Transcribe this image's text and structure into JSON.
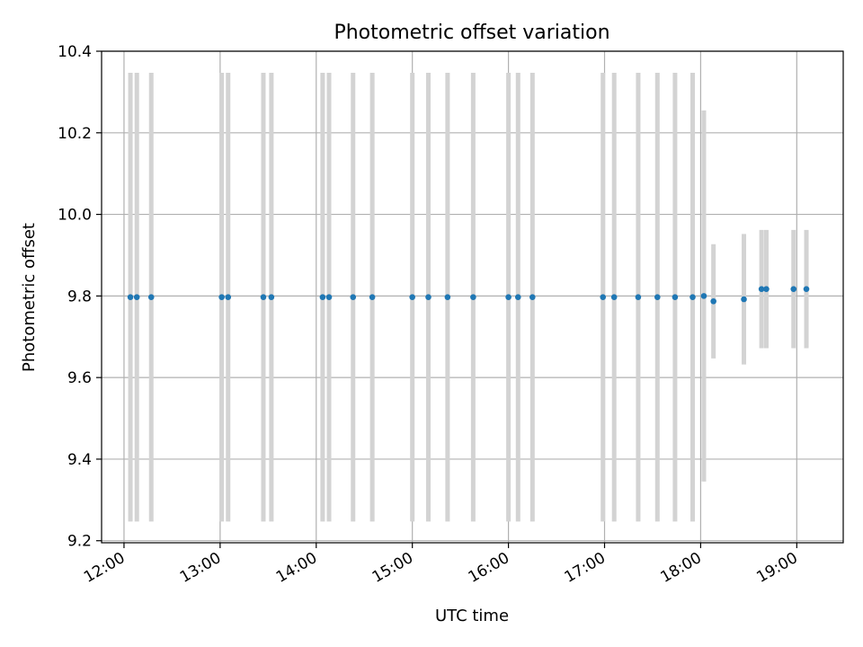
{
  "chart_data": {
    "type": "scatter",
    "title": "Photometric offset variation",
    "xlabel": "UTC time",
    "ylabel": "Photometric offset",
    "x_axis": "time",
    "xlim": [
      "11:46",
      "19:29"
    ],
    "ylim": [
      9.195,
      10.4
    ],
    "xticks": [
      "12:00",
      "13:00",
      "14:00",
      "15:00",
      "16:00",
      "17:00",
      "18:00",
      "19:00"
    ],
    "yticks": [
      9.2,
      9.4,
      9.6,
      9.8,
      10.0,
      10.2,
      10.4
    ],
    "ytick_labels": [
      "9.2",
      "9.4",
      "9.6",
      "9.8",
      "10.0",
      "10.2",
      "10.4"
    ],
    "grid": true,
    "colors": {
      "points": "#1f77b4",
      "error_bars": "#d3d3d3"
    },
    "points": [
      {
        "t": "12:04",
        "y": 9.797,
        "err": 0.55
      },
      {
        "t": "12:08",
        "y": 9.797,
        "err": 0.55
      },
      {
        "t": "12:17",
        "y": 9.797,
        "err": 0.55
      },
      {
        "t": "13:01",
        "y": 9.797,
        "err": 0.55
      },
      {
        "t": "13:05",
        "y": 9.797,
        "err": 0.55
      },
      {
        "t": "13:27",
        "y": 9.797,
        "err": 0.55
      },
      {
        "t": "13:32",
        "y": 9.797,
        "err": 0.55
      },
      {
        "t": "14:04",
        "y": 9.797,
        "err": 0.55
      },
      {
        "t": "14:08",
        "y": 9.797,
        "err": 0.55
      },
      {
        "t": "14:23",
        "y": 9.797,
        "err": 0.55
      },
      {
        "t": "14:35",
        "y": 9.797,
        "err": 0.55
      },
      {
        "t": "15:00",
        "y": 9.797,
        "err": 0.55
      },
      {
        "t": "15:10",
        "y": 9.797,
        "err": 0.55
      },
      {
        "t": "15:22",
        "y": 9.797,
        "err": 0.55
      },
      {
        "t": "15:38",
        "y": 9.797,
        "err": 0.55
      },
      {
        "t": "16:00",
        "y": 9.797,
        "err": 0.55
      },
      {
        "t": "16:06",
        "y": 9.797,
        "err": 0.55
      },
      {
        "t": "16:15",
        "y": 9.797,
        "err": 0.55
      },
      {
        "t": "16:59",
        "y": 9.797,
        "err": 0.55
      },
      {
        "t": "17:06",
        "y": 9.797,
        "err": 0.55
      },
      {
        "t": "17:21",
        "y": 9.797,
        "err": 0.55
      },
      {
        "t": "17:33",
        "y": 9.797,
        "err": 0.55
      },
      {
        "t": "17:44",
        "y": 9.797,
        "err": 0.55
      },
      {
        "t": "17:55",
        "y": 9.797,
        "err": 0.55
      },
      {
        "t": "18:02",
        "y": 9.8,
        "err": 0.455
      },
      {
        "t": "18:08",
        "y": 9.787,
        "err": 0.14
      },
      {
        "t": "18:27",
        "y": 9.792,
        "err": 0.16
      },
      {
        "t": "18:38",
        "y": 9.817,
        "err": 0.145
      },
      {
        "t": "18:41",
        "y": 9.817,
        "err": 0.145
      },
      {
        "t": "18:58",
        "y": 9.817,
        "err": 0.145
      },
      {
        "t": "19:06",
        "y": 9.817,
        "err": 0.145
      }
    ]
  }
}
